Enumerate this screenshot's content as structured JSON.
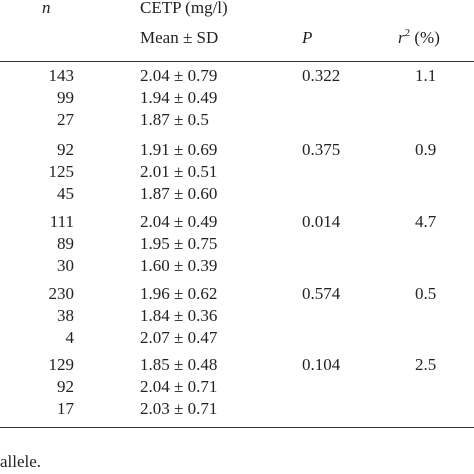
{
  "header": {
    "n_label": "n",
    "cetp_label": "CETP (mg/l)",
    "mean_label": "Mean ± SD",
    "p_label": "P",
    "r_label_base": "r",
    "r_label_sup": "2",
    "r_label_unit": "(%)"
  },
  "groups": [
    {
      "rows": [
        {
          "n": "143",
          "mean": "2.04 ± 0.79"
        },
        {
          "n": "99",
          "mean": "1.94 ± 0.49"
        },
        {
          "n": "27",
          "mean": "1.87 ± 0.5"
        }
      ],
      "p": "0.322",
      "r2": "1.1"
    },
    {
      "rows": [
        {
          "n": "92",
          "mean": "1.91 ± 0.69"
        },
        {
          "n": "125",
          "mean": "2.01 ± 0.51"
        },
        {
          "n": "45",
          "mean": "1.87 ± 0.60"
        }
      ],
      "p": "0.375",
      "r2": "0.9"
    },
    {
      "rows": [
        {
          "n": "111",
          "mean": "2.04 ± 0.49"
        },
        {
          "n": "89",
          "mean": "1.95 ± 0.75"
        },
        {
          "n": "30",
          "mean": "1.60 ± 0.39"
        }
      ],
      "p": "0.014",
      "r2": "4.7"
    },
    {
      "rows": [
        {
          "n": "230",
          "mean": "1.96 ± 0.62"
        },
        {
          "n": "38",
          "mean": "1.84 ± 0.36"
        },
        {
          "n": "4",
          "mean": "2.07 ± 0.47"
        }
      ],
      "p": "0.574",
      "r2": "0.5"
    },
    {
      "rows": [
        {
          "n": "129",
          "mean": "1.85 ± 0.48"
        },
        {
          "n": "92",
          "mean": "2.04 ± 0.71"
        },
        {
          "n": "17",
          "mean": "2.03 ± 0.71"
        }
      ],
      "p": "0.104",
      "r2": "2.5"
    }
  ],
  "footnote": "allele."
}
